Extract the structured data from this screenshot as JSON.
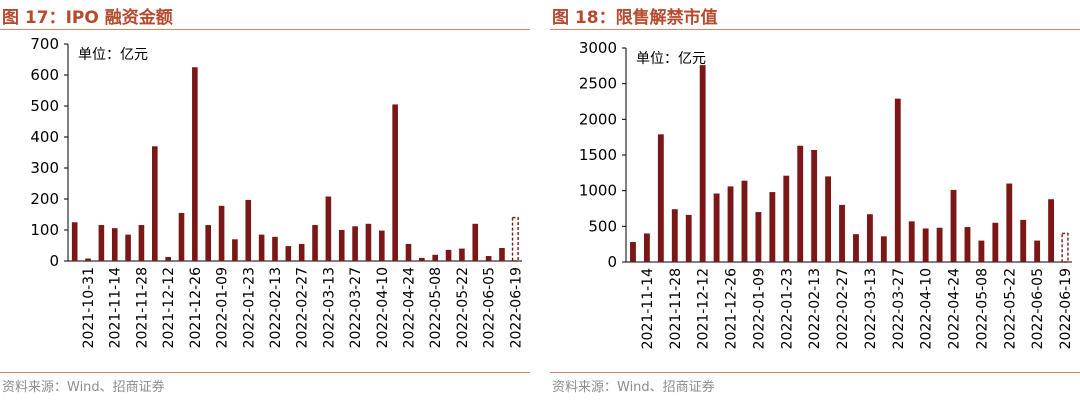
{
  "colors": {
    "bar": "#7b1716",
    "title": "#b54a2e",
    "rule": "#d9846c",
    "source": "#8c8c8c",
    "text": "#000000"
  },
  "source_text": "资料来源：Wind、招商证券",
  "chart_data": [
    {
      "type": "bar",
      "title": "图 17：IPO 融资金额",
      "unit_label": "单位：亿元",
      "ylim": [
        0,
        700
      ],
      "yticks": [
        0,
        100,
        200,
        300,
        400,
        500,
        600,
        700
      ],
      "x_tick_labels": [
        "2021-10-31",
        "2021-11-14",
        "2021-11-28",
        "2021-12-12",
        "2021-12-26",
        "2022-01-09",
        "2022-01-23",
        "2022-02-13",
        "2022-02-27",
        "2022-03-13",
        "2022-03-27",
        "2022-04-10",
        "2022-04-24",
        "2022-05-08",
        "2022-05-22",
        "2022-06-05",
        "2022-06-19"
      ],
      "values": [
        125,
        8,
        116,
        106,
        85,
        116,
        370,
        13,
        155,
        625,
        116,
        178,
        70,
        197,
        85,
        78,
        48,
        55,
        116,
        208,
        100,
        112,
        120,
        98,
        505,
        55,
        10,
        20,
        36,
        40,
        120,
        16,
        42,
        140
      ],
      "last_dashed": true,
      "grid": false
    },
    {
      "type": "bar",
      "title": "图 18：限售解禁市值",
      "unit_label": "单位：亿元",
      "ylim": [
        0,
        3000
      ],
      "yticks": [
        0,
        500,
        1000,
        1500,
        2000,
        2500,
        3000
      ],
      "x_tick_labels": [
        "2021-11-14",
        "2021-11-28",
        "2021-12-12",
        "2021-12-26",
        "2022-01-09",
        "2022-01-23",
        "2022-02-13",
        "2022-02-27",
        "2022-03-13",
        "2022-03-27",
        "2022-04-10",
        "2022-04-24",
        "2022-05-08",
        "2022-05-22",
        "2022-06-05",
        "2022-06-19"
      ],
      "values": [
        280,
        400,
        1790,
        740,
        660,
        2760,
        960,
        1060,
        1140,
        700,
        980,
        1210,
        1630,
        1570,
        1200,
        800,
        390,
        670,
        360,
        2290,
        570,
        470,
        480,
        1010,
        490,
        300,
        550,
        1100,
        590,
        300,
        880,
        400
      ],
      "last_dashed": true,
      "grid": false
    }
  ]
}
